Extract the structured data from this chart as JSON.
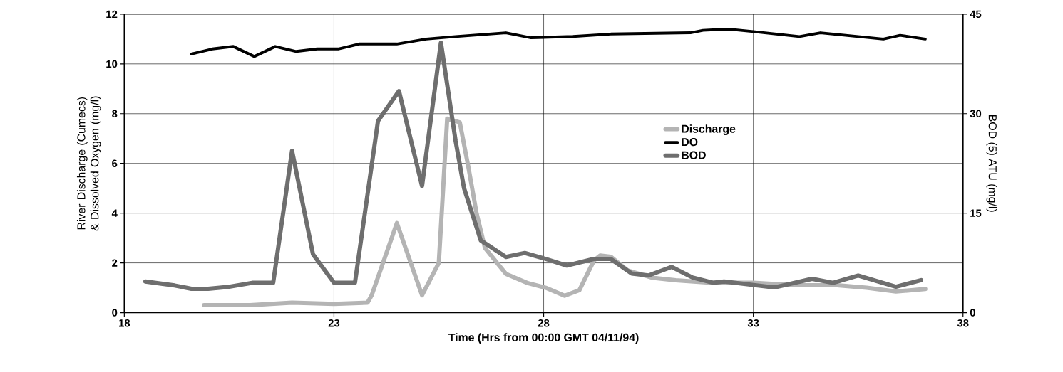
{
  "chart_data": {
    "type": "line",
    "xlabel": "Time (Hrs from 00:00 GMT 04/11/94)",
    "ylabel": "River Discharge (Cumecs) & Dissolved Oxygen (mg/l)",
    "y2label": "BOD (5) ATU (mg/l)",
    "xlim": [
      18,
      38
    ],
    "xticks": [
      18,
      23,
      28,
      33,
      38
    ],
    "ylim": [
      0,
      12
    ],
    "yticks": [
      0,
      2,
      4,
      6,
      8,
      10,
      12
    ],
    "y2lim": [
      0,
      45
    ],
    "y2ticks": [
      0,
      15,
      30,
      45
    ],
    "grid": true,
    "legend": "right",
    "marker": "none",
    "line_style": "solid",
    "series": [
      {
        "name": "Discharge",
        "color": "#b4b4b4",
        "x": [
          19.9,
          21.0,
          22.0,
          23.0,
          23.8,
          23.9,
          24.5,
          25.1,
          25.5,
          25.7,
          26.0,
          26.2,
          26.4,
          26.6,
          27.1,
          27.6,
          28.05,
          28.5,
          28.85,
          29.2,
          29.35,
          29.6,
          30.0,
          30.6,
          31.15,
          32.0,
          33.0,
          34.0,
          35.0,
          35.7,
          36.4,
          37.1
        ],
        "values": [
          0.3,
          0.3,
          0.4,
          0.35,
          0.4,
          0.7,
          3.6,
          0.7,
          2.0,
          7.8,
          7.65,
          5.9,
          4.0,
          2.6,
          1.56,
          1.2,
          1.0,
          0.68,
          0.9,
          2.1,
          2.3,
          2.25,
          1.7,
          1.4,
          1.3,
          1.2,
          1.2,
          1.1,
          1.1,
          1.0,
          0.85,
          0.95
        ]
      },
      {
        "name": "DO",
        "color": "#000000",
        "x": [
          19.6,
          20.1,
          20.6,
          21.1,
          21.6,
          22.1,
          22.6,
          23.1,
          23.6,
          24.5,
          25.2,
          25.9,
          27.1,
          27.7,
          28.7,
          29.6,
          31.5,
          31.8,
          32.4,
          33.0,
          34.1,
          34.6,
          36.1,
          36.5,
          37.1
        ],
        "values": [
          10.4,
          10.6,
          10.7,
          10.3,
          10.7,
          10.5,
          10.6,
          10.6,
          10.8,
          10.8,
          11.0,
          11.1,
          11.25,
          11.05,
          11.1,
          11.2,
          11.25,
          11.35,
          11.4,
          11.3,
          11.1,
          11.25,
          11.0,
          11.15,
          11.0
        ]
      },
      {
        "name": "BOD",
        "color": "#6e6e6e",
        "axis": "y2",
        "x": [
          18.5,
          19.2,
          19.6,
          20.0,
          20.5,
          21.05,
          21.55,
          22.0,
          22.5,
          23.0,
          23.5,
          24.05,
          24.55,
          25.1,
          25.55,
          25.9,
          26.1,
          26.5,
          27.1,
          27.55,
          28.05,
          28.55,
          29.2,
          29.6,
          30.1,
          30.5,
          31.05,
          31.55,
          32.05,
          32.3,
          33.5,
          34.4,
          34.9,
          35.5,
          36.4,
          37.0
        ],
        "values": [
          4.7,
          4.1,
          3.6,
          3.6,
          3.9,
          4.5,
          4.5,
          24.4,
          8.8,
          4.5,
          4.5,
          28.9,
          33.4,
          19.1,
          40.7,
          25.9,
          18.8,
          10.9,
          8.4,
          9.0,
          8.1,
          7.1,
          8.1,
          8.1,
          5.9,
          5.6,
          6.9,
          5.3,
          4.5,
          4.7,
          3.8,
          5.1,
          4.5,
          5.6,
          3.9,
          4.9
        ]
      }
    ]
  }
}
